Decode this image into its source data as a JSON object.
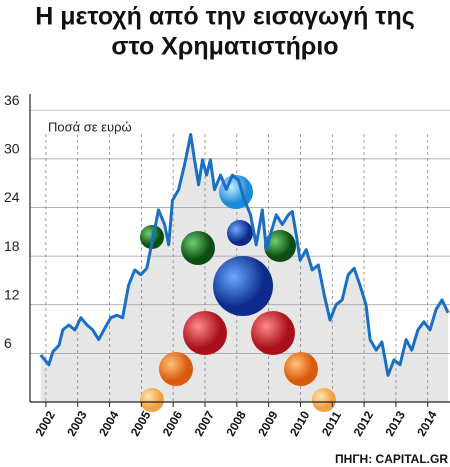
{
  "chart_data": {
    "type": "line",
    "title": [
      "Η μετοχή από την εισαγωγή της",
      "στο Χρηματιστήριο"
    ],
    "y_label": "Ποσά σε ευρώ",
    "source": "ΠΗΓΗ: CAPITAL.GR",
    "x": [
      2001.84,
      2002.09,
      2002.22,
      2002.41,
      2002.53,
      2002.72,
      2002.91,
      2003.1,
      2003.29,
      2003.47,
      2003.66,
      2003.85,
      2004.04,
      2004.23,
      2004.41,
      2004.6,
      2004.79,
      2004.98,
      2005.17,
      2005.35,
      2005.54,
      2005.73,
      2005.86,
      2005.98,
      2006.17,
      2006.36,
      2006.55,
      2006.67,
      2006.8,
      2006.92,
      2007.05,
      2007.17,
      2007.3,
      2007.49,
      2007.67,
      2007.86,
      2008.05,
      2008.24,
      2008.43,
      2008.61,
      2008.8,
      2008.93,
      2009.05,
      2009.24,
      2009.43,
      2009.62,
      2009.74,
      2009.87,
      2009.99,
      2010.18,
      2010.37,
      2010.56,
      2010.75,
      2010.93,
      2011.12,
      2011.31,
      2011.5,
      2011.69,
      2011.87,
      2012.06,
      2012.19,
      2012.38,
      2012.56,
      2012.75,
      2012.94,
      2013.13,
      2013.32,
      2013.5,
      2013.69,
      2013.88,
      2014.07,
      2014.26,
      2014.45,
      2014.64
    ],
    "series": [
      {
        "name": "Μετοχή",
        "color": "#1a6fc4",
        "values": [
          5.8,
          4.6,
          6.2,
          7.0,
          8.9,
          9.5,
          8.9,
          10.4,
          9.5,
          8.9,
          7.7,
          9.1,
          10.4,
          10.7,
          10.4,
          14.4,
          16.3,
          15.7,
          16.5,
          20.0,
          23.7,
          21.9,
          19.4,
          24.9,
          26.2,
          29.3,
          33.0,
          29.9,
          26.8,
          29.9,
          28.0,
          29.9,
          26.2,
          28.0,
          26.2,
          28.0,
          27.4,
          24.9,
          23.1,
          19.4,
          23.7,
          18.8,
          20.6,
          23.1,
          21.9,
          23.1,
          23.5,
          20.6,
          17.5,
          18.8,
          16.3,
          16.9,
          13.2,
          10.1,
          12.0,
          12.6,
          15.7,
          16.5,
          14.4,
          12.0,
          7.7,
          6.4,
          7.4,
          3.3,
          5.2,
          4.6,
          7.7,
          6.4,
          8.9,
          9.9,
          8.9,
          11.4,
          12.6,
          11.0
        ]
      }
    ],
    "xlim": [
      2001.5,
      2014.7
    ],
    "xticks": [
      2002,
      2003,
      2004,
      2005,
      2006,
      2007,
      2008,
      2009,
      2010,
      2011,
      2012,
      2013,
      2014
    ],
    "ylim": [
      0,
      38
    ],
    "yticks": [
      6,
      12,
      18,
      24,
      30,
      36
    ],
    "grid": true
  }
}
